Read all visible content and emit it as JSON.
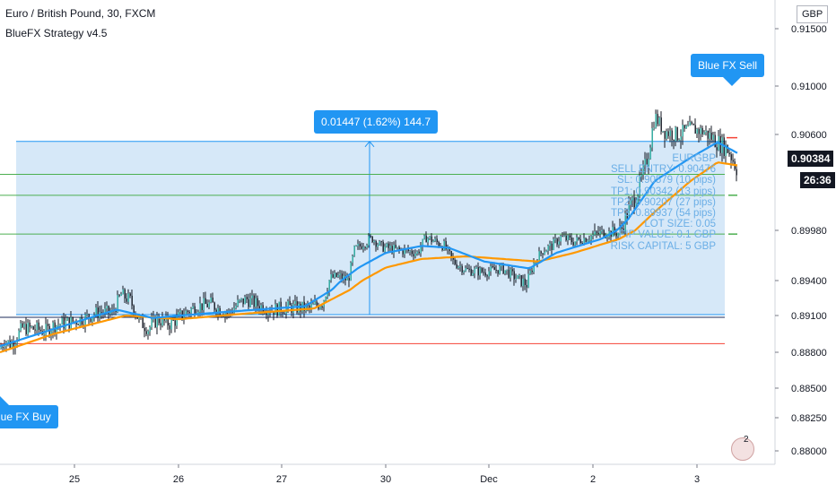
{
  "header": {
    "title": "Euro / British Pound, 30, FXCM",
    "subtitle": "BlueFX Strategy v4.5"
  },
  "chart_data": {
    "type": "candlestick",
    "symbol": "EURGBP",
    "currency": "GBP",
    "current_price": "0.90384",
    "countdown": "26:36",
    "y_ticks": [
      "0.91500",
      "0.91000",
      "0.90600",
      "0.90384",
      "0.89980",
      "0.89400",
      "0.89100",
      "0.88800",
      "0.88500",
      "0.88250",
      "0.88000"
    ],
    "x_ticks": [
      "25",
      "26",
      "27",
      "30",
      "Dec",
      "2",
      "3"
    ],
    "ylim": [
      0.879,
      0.916
    ],
    "close_path": [
      [
        0,
        0.8883
      ],
      [
        5,
        0.889
      ],
      [
        12,
        0.8886
      ],
      [
        25,
        0.89
      ],
      [
        40,
        0.8899
      ],
      [
        50,
        0.8897
      ],
      [
        60,
        0.8902
      ],
      [
        80,
        0.8905
      ],
      [
        95,
        0.8908
      ],
      [
        110,
        0.8913
      ],
      [
        125,
        0.8912
      ],
      [
        135,
        0.8928
      ],
      [
        145,
        0.8923
      ],
      [
        155,
        0.8906
      ],
      [
        165,
        0.8899
      ],
      [
        175,
        0.8907
      ],
      [
        190,
        0.8903
      ],
      [
        205,
        0.8912
      ],
      [
        220,
        0.8918
      ],
      [
        235,
        0.892
      ],
      [
        245,
        0.8915
      ],
      [
        255,
        0.8912
      ],
      [
        265,
        0.892
      ],
      [
        275,
        0.8924
      ],
      [
        290,
        0.8918
      ],
      [
        305,
        0.8915
      ],
      [
        320,
        0.8917
      ],
      [
        345,
        0.8916
      ],
      [
        360,
        0.8922
      ],
      [
        368,
        0.8943
      ],
      [
        378,
        0.8945
      ],
      [
        388,
        0.894
      ],
      [
        395,
        0.8975
      ],
      [
        405,
        0.8983
      ],
      [
        415,
        0.8989
      ],
      [
        425,
        0.8979
      ],
      [
        440,
        0.8976
      ],
      [
        455,
        0.8974
      ],
      [
        465,
        0.8972
      ],
      [
        475,
        0.899
      ],
      [
        485,
        0.8985
      ],
      [
        495,
        0.898
      ],
      [
        505,
        0.8962
      ],
      [
        520,
        0.8952
      ],
      [
        540,
        0.895
      ],
      [
        560,
        0.8954
      ],
      [
        575,
        0.8943
      ],
      [
        587,
        0.8937
      ],
      [
        595,
        0.896
      ],
      [
        605,
        0.8975
      ],
      [
        615,
        0.898
      ],
      [
        625,
        0.899
      ],
      [
        640,
        0.8985
      ],
      [
        655,
        0.899
      ],
      [
        670,
        0.8995
      ],
      [
        690,
        0.8995
      ],
      [
        700,
        0.901
      ],
      [
        712,
        0.9025
      ],
      [
        722,
        0.9045
      ],
      [
        730,
        0.9075
      ],
      [
        740,
        0.9063
      ],
      [
        755,
        0.906
      ],
      [
        770,
        0.9065
      ],
      [
        785,
        0.9062
      ],
      [
        800,
        0.9055
      ],
      [
        812,
        0.905
      ],
      [
        822,
        0.9037
      ]
    ],
    "ema_fast_path": [
      [
        0,
        0.8885
      ],
      [
        60,
        0.8899
      ],
      [
        130,
        0.8915
      ],
      [
        170,
        0.8908
      ],
      [
        250,
        0.8913
      ],
      [
        340,
        0.8918
      ],
      [
        370,
        0.8932
      ],
      [
        400,
        0.8955
      ],
      [
        430,
        0.8972
      ],
      [
        470,
        0.898
      ],
      [
        500,
        0.8978
      ],
      [
        540,
        0.8962
      ],
      [
        590,
        0.8954
      ],
      [
        620,
        0.8972
      ],
      [
        670,
        0.8988
      ],
      [
        700,
        0.9005
      ],
      [
        730,
        0.903
      ],
      [
        770,
        0.9045
      ],
      [
        800,
        0.9055
      ],
      [
        822,
        0.9048
      ]
    ],
    "ema_slow_path": [
      [
        0,
        0.888
      ],
      [
        60,
        0.8895
      ],
      [
        140,
        0.891
      ],
      [
        200,
        0.8907
      ],
      [
        280,
        0.8912
      ],
      [
        350,
        0.8916
      ],
      [
        390,
        0.8932
      ],
      [
        430,
        0.8955
      ],
      [
        470,
        0.8965
      ],
      [
        520,
        0.8968
      ],
      [
        560,
        0.8965
      ],
      [
        600,
        0.8962
      ],
      [
        640,
        0.8972
      ],
      [
        690,
        0.8988
      ],
      [
        730,
        0.901
      ],
      [
        770,
        0.903
      ],
      [
        800,
        0.9042
      ],
      [
        822,
        0.904
      ]
    ],
    "levels": {
      "sl": 0.90579,
      "entry": 0.90476,
      "tp1": 0.90342,
      "tp2": 0.90207,
      "tp3": 0.89937,
      "buy_entry": 0.89085,
      "buy_sl": 0.8887,
      "measure_low": 0.89108,
      "measure_high": 0.90555
    },
    "colors": {
      "up": "#26a69a",
      "candle": "#131722",
      "ema_fast": "#2196f3",
      "ema_slow": "#ff9800",
      "box_fill": "#d6e8f8",
      "box_line": "#2196f3",
      "tp_line": "#4caf50",
      "sl_line": "#f44336"
    },
    "annotations": {
      "measure_label": "0.01447 (1.62%) 144.7",
      "sell_label": "Blue FX Sell",
      "buy_label": "Blue FX Buy"
    },
    "info_panel": [
      "EURGBP",
      "SELL ENTRY: 0.90476",
      "SL: 0.90579 (10 pips)",
      "TP1: 0.90342 (13 pips)",
      "TP2: 0.90207 (27 pips)",
      "TP3: 0.89937 (54 pips)",
      "LOT SIZE: 0.05",
      "PIP VALUE: 0.1 GBP",
      "RISK CAPITAL: 5 GBP"
    ],
    "logo_badge": "2"
  }
}
